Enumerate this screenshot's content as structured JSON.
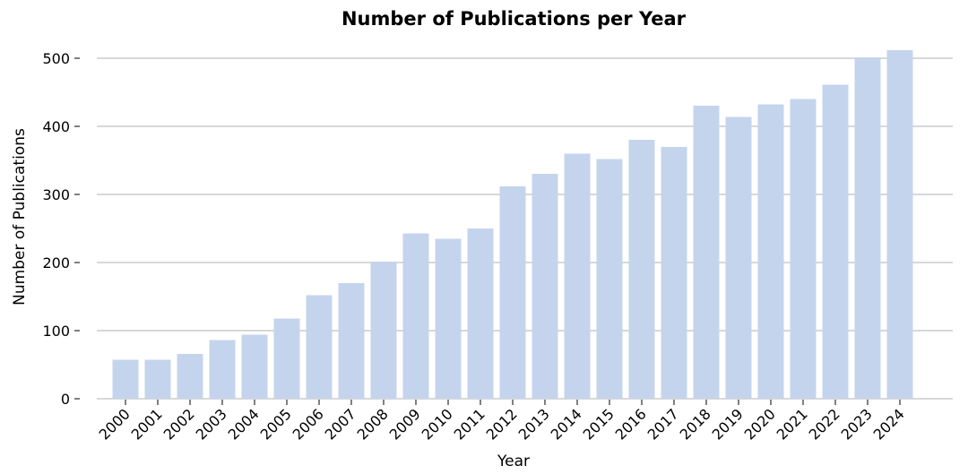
{
  "chart_data": {
    "type": "bar",
    "title": "Number of Publications per Year",
    "xlabel": "Year",
    "ylabel": "Number of Publications",
    "categories": [
      "2000",
      "2001",
      "2002",
      "2003",
      "2004",
      "2005",
      "2006",
      "2007",
      "2008",
      "2009",
      "2010",
      "2011",
      "2012",
      "2013",
      "2014",
      "2015",
      "2016",
      "2017",
      "2018",
      "2019",
      "2020",
      "2021",
      "2022",
      "2023",
      "2024"
    ],
    "values": [
      57,
      57,
      66,
      86,
      94,
      118,
      152,
      170,
      201,
      243,
      235,
      250,
      312,
      330,
      360,
      352,
      380,
      370,
      430,
      414,
      432,
      440,
      461,
      501,
      512
    ],
    "ylim": [
      0,
      525
    ],
    "yticks": [
      "0",
      "100",
      "200",
      "300",
      "400",
      "500"
    ],
    "grid": "horizontal",
    "bar_color": "#c5d4ed"
  }
}
